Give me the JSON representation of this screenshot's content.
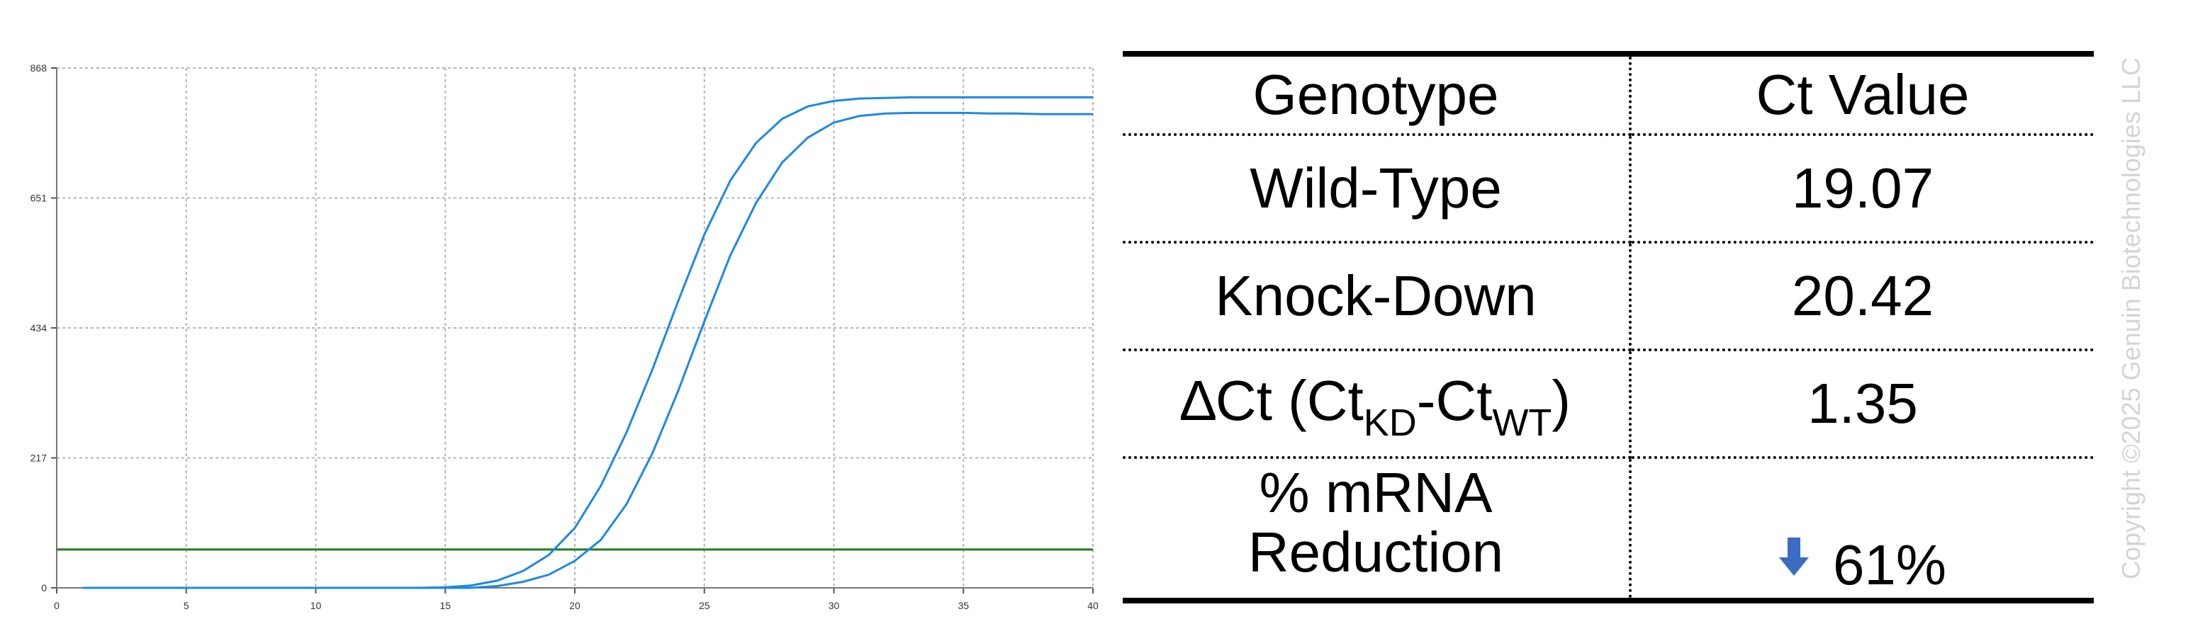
{
  "chart_data": {
    "type": "line",
    "x_ticks": [
      0,
      5,
      10,
      15,
      20,
      25,
      30,
      35,
      40
    ],
    "y_ticks": [
      0,
      217,
      434,
      651,
      868
    ],
    "xlim": [
      0,
      40
    ],
    "ylim": [
      0,
      868
    ],
    "grid": true,
    "series": [
      {
        "color": "#1e88e5",
        "x": [
          1,
          2,
          3,
          4,
          5,
          6,
          7,
          8,
          9,
          10,
          11,
          12,
          13,
          14,
          15,
          16,
          17,
          18,
          19,
          20,
          21,
          22,
          23,
          24,
          25,
          26,
          27,
          28,
          29,
          30,
          31,
          32,
          33,
          34,
          35,
          36,
          37,
          38,
          39,
          40
        ],
        "values": [
          0,
          0,
          0,
          0,
          0,
          0,
          0,
          0,
          0,
          0,
          0,
          0,
          0,
          0,
          1,
          4,
          12,
          28,
          55,
          100,
          170,
          260,
          365,
          480,
          590,
          680,
          743,
          783,
          804,
          813,
          817,
          818,
          819,
          819,
          819,
          819,
          819,
          819,
          819,
          819
        ]
      },
      {
        "color": "#1e88e5",
        "x": [
          1,
          2,
          3,
          4,
          5,
          6,
          7,
          8,
          9,
          10,
          11,
          12,
          13,
          14,
          15,
          16,
          17,
          18,
          19,
          20,
          21,
          22,
          23,
          24,
          25,
          26,
          27,
          28,
          29,
          30,
          31,
          32,
          33,
          34,
          35,
          36,
          37,
          38,
          39,
          40
        ],
        "values": [
          0,
          0,
          0,
          0,
          0,
          0,
          0,
          0,
          0,
          0,
          0,
          0,
          0,
          0,
          0,
          0,
          3,
          10,
          22,
          45,
          80,
          140,
          225,
          330,
          445,
          555,
          643,
          710,
          752,
          777,
          788,
          792,
          793,
          793,
          793,
          792,
          792,
          791,
          791,
          791
        ]
      }
    ],
    "threshold": {
      "value": 64,
      "color": "#1a7f1a"
    }
  },
  "table": {
    "header": {
      "genotype": "Genotype",
      "ct": "Ct Value"
    },
    "rows": [
      {
        "label": "Wild-Type",
        "value": "19.07"
      },
      {
        "label": "Knock-Down",
        "value": "20.42"
      }
    ],
    "delta": {
      "prefix": "∆Ct (Ct",
      "sub1": "KD",
      "mid": "-Ct",
      "sub2": "WT",
      "suffix": ")",
      "value": "1.35"
    },
    "reduction": {
      "label_line1": "% mRNA",
      "label_line2": "Reduction",
      "value": "61%",
      "arrow_color": "#3b6cc2"
    }
  },
  "copyright": "Copyright ©2025 Genuin Biotechnologies LLC"
}
